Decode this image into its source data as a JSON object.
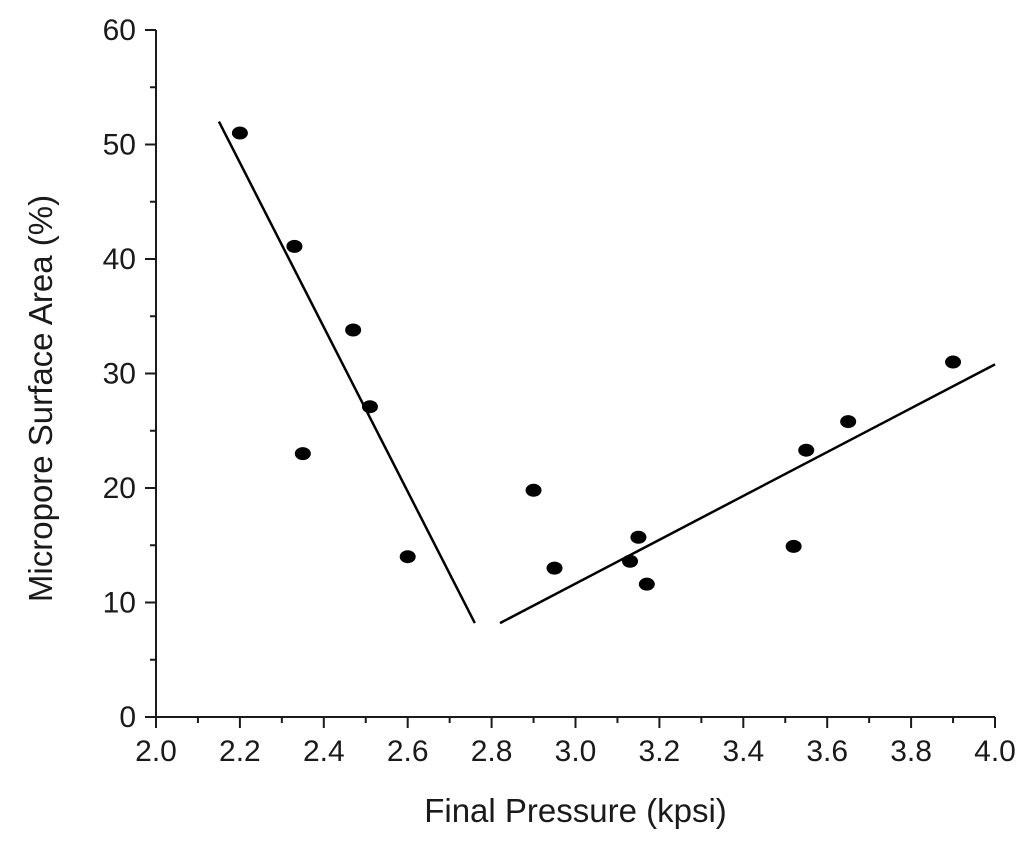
{
  "chart_data": {
    "type": "scatter",
    "title": "",
    "xlabel": "Final Pressure (kpsi)",
    "ylabel": "Micropore Surface Area (%)",
    "xlim": [
      2.0,
      4.0
    ],
    "ylim": [
      0,
      60
    ],
    "x_ticks": [
      2.0,
      2.2,
      2.4,
      2.6,
      2.8,
      3.0,
      3.2,
      3.4,
      3.6,
      3.8,
      4.0
    ],
    "x_tick_labels": [
      "2.0",
      "2.2",
      "2.4",
      "2.6",
      "2.8",
      "3.0",
      "3.2",
      "3.4",
      "3.6",
      "3.8",
      "4.0"
    ],
    "y_ticks": [
      0,
      10,
      20,
      30,
      40,
      50,
      60
    ],
    "y_tick_labels": [
      "0",
      "10",
      "20",
      "30",
      "40",
      "50",
      "60"
    ],
    "grid": false,
    "legend": "none",
    "points": [
      {
        "x": 2.2,
        "y": 51.0
      },
      {
        "x": 2.33,
        "y": 41.1
      },
      {
        "x": 2.35,
        "y": 23.0
      },
      {
        "x": 2.47,
        "y": 33.8
      },
      {
        "x": 2.51,
        "y": 27.1
      },
      {
        "x": 2.6,
        "y": 14.0
      },
      {
        "x": 2.9,
        "y": 19.8
      },
      {
        "x": 2.95,
        "y": 13.0
      },
      {
        "x": 3.13,
        "y": 13.6
      },
      {
        "x": 3.15,
        "y": 15.7
      },
      {
        "x": 3.17,
        "y": 11.6
      },
      {
        "x": 3.52,
        "y": 14.9
      },
      {
        "x": 3.55,
        "y": 23.3
      },
      {
        "x": 3.65,
        "y": 25.8
      },
      {
        "x": 3.9,
        "y": 31.0
      }
    ],
    "fit_lines": [
      {
        "x": [
          2.15,
          2.76
        ],
        "y": [
          52.0,
          8.2
        ]
      },
      {
        "x": [
          2.82,
          4.0
        ],
        "y": [
          8.2,
          30.8
        ]
      }
    ],
    "colors": {
      "marker": "#000000",
      "line": "#000000",
      "axis": "#1a1a1a"
    }
  }
}
